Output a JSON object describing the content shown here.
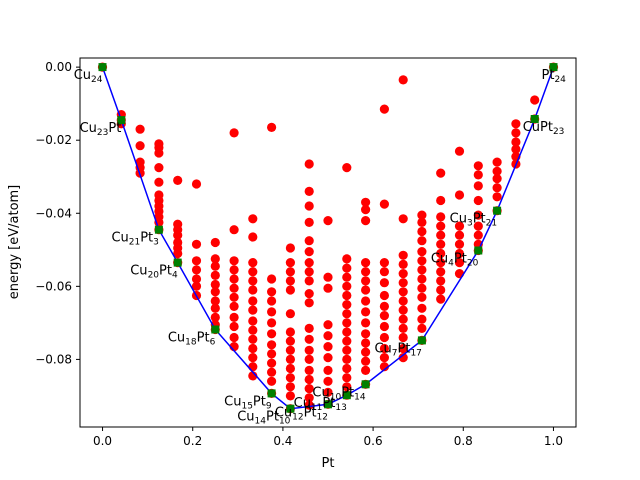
{
  "chart_data": {
    "type": "scatter",
    "title": "",
    "xlabel": "Pt",
    "ylabel": "energy [eV/atom]",
    "xlim": [
      -0.05,
      1.05
    ],
    "ylim": [
      -0.0985,
      0.0025
    ],
    "xticks": [
      0.0,
      0.2,
      0.4,
      0.6,
      0.8,
      1.0
    ],
    "xtick_labels": [
      "0.0",
      "0.2",
      "0.4",
      "0.6",
      "0.8",
      "1.0"
    ],
    "yticks": [
      0.0,
      -0.02,
      -0.04,
      -0.06,
      -0.08
    ],
    "ytick_labels": [
      "0.00",
      "−0.02",
      "−0.04",
      "−0.06",
      "−0.08"
    ],
    "grid": false,
    "colors": {
      "points": "#ff0000",
      "hull_points": "#008000",
      "hull_line": "#0000ff"
    },
    "hull": [
      [
        0.0,
        0.0
      ],
      [
        0.0417,
        -0.0145
      ],
      [
        0.125,
        -0.0445
      ],
      [
        0.1667,
        -0.0535
      ],
      [
        0.25,
        -0.0718
      ],
      [
        0.375,
        -0.0893
      ],
      [
        0.4167,
        -0.0935
      ],
      [
        0.5,
        -0.0923
      ],
      [
        0.5417,
        -0.0898
      ],
      [
        0.5833,
        -0.0868
      ],
      [
        0.7083,
        -0.0748
      ],
      [
        0.8333,
        -0.0502
      ],
      [
        0.875,
        -0.0393
      ],
      [
        0.9583,
        -0.0142
      ],
      [
        1.0,
        0.0
      ]
    ],
    "hull_points": [
      [
        0.0,
        0.0
      ],
      [
        0.0417,
        -0.0145
      ],
      [
        0.125,
        -0.0445
      ],
      [
        0.1667,
        -0.0535
      ],
      [
        0.25,
        -0.0718
      ],
      [
        0.375,
        -0.0893
      ],
      [
        0.4167,
        -0.0935
      ],
      [
        0.5,
        -0.0923
      ],
      [
        0.5417,
        -0.0898
      ],
      [
        0.5833,
        -0.0868
      ],
      [
        0.7083,
        -0.0748
      ],
      [
        0.8333,
        -0.0502
      ],
      [
        0.875,
        -0.0393
      ],
      [
        0.9583,
        -0.0142
      ],
      [
        1.0,
        0.0
      ]
    ],
    "scatter": [
      [
        0.0,
        0.0
      ],
      [
        0.0417,
        -0.013
      ],
      [
        0.0417,
        -0.0145
      ],
      [
        0.0417,
        -0.0155
      ],
      [
        0.0833,
        -0.017
      ],
      [
        0.0833,
        -0.0215
      ],
      [
        0.0833,
        -0.026
      ],
      [
        0.0833,
        -0.0275
      ],
      [
        0.0833,
        -0.029
      ],
      [
        0.125,
        -0.021
      ],
      [
        0.125,
        -0.022
      ],
      [
        0.125,
        -0.0235
      ],
      [
        0.125,
        -0.0275
      ],
      [
        0.125,
        -0.0315
      ],
      [
        0.125,
        -0.035
      ],
      [
        0.125,
        -0.0365
      ],
      [
        0.125,
        -0.038
      ],
      [
        0.125,
        -0.0395
      ],
      [
        0.125,
        -0.041
      ],
      [
        0.125,
        -0.0425
      ],
      [
        0.125,
        -0.0445
      ],
      [
        0.1667,
        -0.031
      ],
      [
        0.1667,
        -0.043
      ],
      [
        0.1667,
        -0.0445
      ],
      [
        0.1667,
        -0.046
      ],
      [
        0.1667,
        -0.048
      ],
      [
        0.1667,
        -0.0495
      ],
      [
        0.1667,
        -0.051
      ],
      [
        0.1667,
        -0.0535
      ],
      [
        0.2083,
        -0.032
      ],
      [
        0.2083,
        -0.0485
      ],
      [
        0.2083,
        -0.053
      ],
      [
        0.2083,
        -0.0555
      ],
      [
        0.2083,
        -0.058
      ],
      [
        0.2083,
        -0.06
      ],
      [
        0.2083,
        -0.0625
      ],
      [
        0.25,
        -0.048
      ],
      [
        0.25,
        -0.0525
      ],
      [
        0.25,
        -0.0545
      ],
      [
        0.25,
        -0.057
      ],
      [
        0.25,
        -0.0595
      ],
      [
        0.25,
        -0.0615
      ],
      [
        0.25,
        -0.064
      ],
      [
        0.25,
        -0.066
      ],
      [
        0.25,
        -0.0685
      ],
      [
        0.25,
        -0.0705
      ],
      [
        0.25,
        -0.0718
      ],
      [
        0.2917,
        -0.018
      ],
      [
        0.2917,
        -0.0445
      ],
      [
        0.2917,
        -0.053
      ],
      [
        0.2917,
        -0.0555
      ],
      [
        0.2917,
        -0.058
      ],
      [
        0.2917,
        -0.0605
      ],
      [
        0.2917,
        -0.063
      ],
      [
        0.2917,
        -0.0655
      ],
      [
        0.2917,
        -0.0685
      ],
      [
        0.2917,
        -0.071
      ],
      [
        0.2917,
        -0.074
      ],
      [
        0.2917,
        -0.0765
      ],
      [
        0.3333,
        -0.0415
      ],
      [
        0.3333,
        -0.0465
      ],
      [
        0.3333,
        -0.0535
      ],
      [
        0.3333,
        -0.056
      ],
      [
        0.3333,
        -0.0585
      ],
      [
        0.3333,
        -0.061
      ],
      [
        0.3333,
        -0.064
      ],
      [
        0.3333,
        -0.0665
      ],
      [
        0.3333,
        -0.0695
      ],
      [
        0.3333,
        -0.072
      ],
      [
        0.3333,
        -0.0745
      ],
      [
        0.3333,
        -0.077
      ],
      [
        0.3333,
        -0.0795
      ],
      [
        0.3333,
        -0.082
      ],
      [
        0.3333,
        -0.0845
      ],
      [
        0.375,
        -0.0165
      ],
      [
        0.375,
        -0.058
      ],
      [
        0.375,
        -0.0615
      ],
      [
        0.375,
        -0.064
      ],
      [
        0.375,
        -0.067
      ],
      [
        0.375,
        -0.07
      ],
      [
        0.375,
        -0.073
      ],
      [
        0.375,
        -0.076
      ],
      [
        0.375,
        -0.0785
      ],
      [
        0.375,
        -0.081
      ],
      [
        0.375,
        -0.0835
      ],
      [
        0.375,
        -0.086
      ],
      [
        0.375,
        -0.0893
      ],
      [
        0.4167,
        -0.0495
      ],
      [
        0.4167,
        -0.0535
      ],
      [
        0.4167,
        -0.056
      ],
      [
        0.4167,
        -0.0585
      ],
      [
        0.4167,
        -0.061
      ],
      [
        0.4167,
        -0.0675
      ],
      [
        0.4167,
        -0.0725
      ],
      [
        0.4167,
        -0.075
      ],
      [
        0.4167,
        -0.0775
      ],
      [
        0.4167,
        -0.08
      ],
      [
        0.4167,
        -0.0825
      ],
      [
        0.4167,
        -0.085
      ],
      [
        0.4167,
        -0.0875
      ],
      [
        0.4167,
        -0.09
      ],
      [
        0.4167,
        -0.0935
      ],
      [
        0.4583,
        -0.0265
      ],
      [
        0.4583,
        -0.034
      ],
      [
        0.4583,
        -0.038
      ],
      [
        0.4583,
        -0.0425
      ],
      [
        0.4583,
        -0.0475
      ],
      [
        0.4583,
        -0.0505
      ],
      [
        0.4583,
        -0.0535
      ],
      [
        0.4583,
        -0.056
      ],
      [
        0.4583,
        -0.0585
      ],
      [
        0.4583,
        -0.062
      ],
      [
        0.4583,
        -0.0645
      ],
      [
        0.4583,
        -0.0715
      ],
      [
        0.4583,
        -0.0745
      ],
      [
        0.4583,
        -0.0775
      ],
      [
        0.4583,
        -0.08
      ],
      [
        0.4583,
        -0.083
      ],
      [
        0.4583,
        -0.0855
      ],
      [
        0.4583,
        -0.088
      ],
      [
        0.4583,
        -0.0905
      ],
      [
        0.4583,
        -0.0925
      ],
      [
        0.5,
        -0.042
      ],
      [
        0.5,
        -0.0575
      ],
      [
        0.5,
        -0.0605
      ],
      [
        0.5,
        -0.0705
      ],
      [
        0.5,
        -0.0735
      ],
      [
        0.5,
        -0.0765
      ],
      [
        0.5,
        -0.0795
      ],
      [
        0.5,
        -0.083
      ],
      [
        0.5,
        -0.086
      ],
      [
        0.5,
        -0.089
      ],
      [
        0.5,
        -0.0923
      ],
      [
        0.5417,
        -0.0275
      ],
      [
        0.5417,
        -0.0525
      ],
      [
        0.5417,
        -0.055
      ],
      [
        0.5417,
        -0.0575
      ],
      [
        0.5417,
        -0.06
      ],
      [
        0.5417,
        -0.0625
      ],
      [
        0.5417,
        -0.065
      ],
      [
        0.5417,
        -0.0675
      ],
      [
        0.5417,
        -0.07
      ],
      [
        0.5417,
        -0.0725
      ],
      [
        0.5417,
        -0.075
      ],
      [
        0.5417,
        -0.0775
      ],
      [
        0.5417,
        -0.08
      ],
      [
        0.5417,
        -0.0825
      ],
      [
        0.5417,
        -0.085
      ],
      [
        0.5417,
        -0.0875
      ],
      [
        0.5417,
        -0.0898
      ],
      [
        0.5833,
        -0.037
      ],
      [
        0.5833,
        -0.039
      ],
      [
        0.5833,
        -0.042
      ],
      [
        0.5833,
        -0.0535
      ],
      [
        0.5833,
        -0.056
      ],
      [
        0.5833,
        -0.0585
      ],
      [
        0.5833,
        -0.061
      ],
      [
        0.5833,
        -0.064
      ],
      [
        0.5833,
        -0.067
      ],
      [
        0.5833,
        -0.07
      ],
      [
        0.5833,
        -0.073
      ],
      [
        0.5833,
        -0.0755
      ],
      [
        0.5833,
        -0.078
      ],
      [
        0.5833,
        -0.0805
      ],
      [
        0.5833,
        -0.083
      ],
      [
        0.5833,
        -0.0868
      ],
      [
        0.625,
        -0.0115
      ],
      [
        0.625,
        -0.0375
      ],
      [
        0.625,
        -0.0535
      ],
      [
        0.625,
        -0.056
      ],
      [
        0.625,
        -0.059
      ],
      [
        0.625,
        -0.0625
      ],
      [
        0.625,
        -0.0655
      ],
      [
        0.625,
        -0.068
      ],
      [
        0.625,
        -0.071
      ],
      [
        0.625,
        -0.074
      ],
      [
        0.625,
        -0.077
      ],
      [
        0.625,
        -0.0795
      ],
      [
        0.625,
        -0.082
      ],
      [
        0.6667,
        -0.0035
      ],
      [
        0.6667,
        -0.0415
      ],
      [
        0.6667,
        -0.0515
      ],
      [
        0.6667,
        -0.054
      ],
      [
        0.6667,
        -0.0565
      ],
      [
        0.6667,
        -0.059
      ],
      [
        0.6667,
        -0.0615
      ],
      [
        0.6667,
        -0.064
      ],
      [
        0.6667,
        -0.0665
      ],
      [
        0.6667,
        -0.069
      ],
      [
        0.6667,
        -0.0715
      ],
      [
        0.6667,
        -0.074
      ],
      [
        0.6667,
        -0.077
      ],
      [
        0.6667,
        -0.0795
      ],
      [
        0.7083,
        -0.0405
      ],
      [
        0.7083,
        -0.0425
      ],
      [
        0.7083,
        -0.045
      ],
      [
        0.7083,
        -0.0475
      ],
      [
        0.7083,
        -0.0505
      ],
      [
        0.7083,
        -0.053
      ],
      [
        0.7083,
        -0.0555
      ],
      [
        0.7083,
        -0.058
      ],
      [
        0.7083,
        -0.0605
      ],
      [
        0.7083,
        -0.063
      ],
      [
        0.7083,
        -0.066
      ],
      [
        0.7083,
        -0.069
      ],
      [
        0.7083,
        -0.0715
      ],
      [
        0.7083,
        -0.0748
      ],
      [
        0.75,
        -0.029
      ],
      [
        0.75,
        -0.0365
      ],
      [
        0.75,
        -0.041
      ],
      [
        0.75,
        -0.0435
      ],
      [
        0.75,
        -0.046
      ],
      [
        0.75,
        -0.0485
      ],
      [
        0.75,
        -0.051
      ],
      [
        0.75,
        -0.0535
      ],
      [
        0.75,
        -0.056
      ],
      [
        0.75,
        -0.0585
      ],
      [
        0.75,
        -0.061
      ],
      [
        0.75,
        -0.0635
      ],
      [
        0.7917,
        -0.023
      ],
      [
        0.7917,
        -0.035
      ],
      [
        0.7917,
        -0.0435
      ],
      [
        0.7917,
        -0.046
      ],
      [
        0.7917,
        -0.0485
      ],
      [
        0.7917,
        -0.051
      ],
      [
        0.7917,
        -0.0535
      ],
      [
        0.7917,
        -0.0565
      ],
      [
        0.8333,
        -0.027
      ],
      [
        0.8333,
        -0.0295
      ],
      [
        0.8333,
        -0.0325
      ],
      [
        0.8333,
        -0.0365
      ],
      [
        0.8333,
        -0.0405
      ],
      [
        0.8333,
        -0.0435
      ],
      [
        0.8333,
        -0.046
      ],
      [
        0.8333,
        -0.0485
      ],
      [
        0.8333,
        -0.0502
      ],
      [
        0.875,
        -0.026
      ],
      [
        0.875,
        -0.0285
      ],
      [
        0.875,
        -0.0305
      ],
      [
        0.875,
        -0.033
      ],
      [
        0.875,
        -0.0355
      ],
      [
        0.875,
        -0.0393
      ],
      [
        0.9167,
        -0.0155
      ],
      [
        0.9167,
        -0.018
      ],
      [
        0.9167,
        -0.0205
      ],
      [
        0.9167,
        -0.0225
      ],
      [
        0.9167,
        -0.0245
      ],
      [
        0.9167,
        -0.0265
      ],
      [
        0.9583,
        -0.009
      ],
      [
        0.9583,
        -0.0142
      ],
      [
        1.0,
        0.0
      ]
    ],
    "annotations": [
      {
        "base": "Cu",
        "sub1": "24",
        "mid": "",
        "sub2": "",
        "x": 0.0,
        "y": 0.0
      },
      {
        "base": "Cu",
        "sub1": "23",
        "mid": "Pt",
        "sub2": "",
        "x": 0.0417,
        "y": -0.0145
      },
      {
        "base": "Cu",
        "sub1": "21",
        "mid": "Pt",
        "sub2": "3",
        "x": 0.125,
        "y": -0.0445
      },
      {
        "base": "Cu",
        "sub1": "20",
        "mid": "Pt",
        "sub2": "4",
        "x": 0.1667,
        "y": -0.0535
      },
      {
        "base": "Cu",
        "sub1": "18",
        "mid": "Pt",
        "sub2": "6",
        "x": 0.25,
        "y": -0.0718
      },
      {
        "base": "Cu",
        "sub1": "15",
        "mid": "Pt",
        "sub2": "9",
        "x": 0.375,
        "y": -0.0893
      },
      {
        "base": "Cu",
        "sub1": "14",
        "mid": "Pt",
        "sub2": "10",
        "x": 0.4167,
        "y": -0.0935
      },
      {
        "base": "Cu",
        "sub1": "12",
        "mid": "Pt",
        "sub2": "12",
        "x": 0.5,
        "y": -0.0923
      },
      {
        "base": "Cu",
        "sub1": "11",
        "mid": "Pt",
        "sub2": "13",
        "x": 0.5417,
        "y": -0.0898
      },
      {
        "base": "Cu",
        "sub1": "10",
        "mid": "Pt",
        "sub2": "14",
        "x": 0.5833,
        "y": -0.0868
      },
      {
        "base": "Cu",
        "sub1": "7",
        "mid": "Pt",
        "sub2": "17",
        "x": 0.7083,
        "y": -0.0748
      },
      {
        "base": "Cu",
        "sub1": "4",
        "mid": "Pt",
        "sub2": "20",
        "x": 0.8333,
        "y": -0.0502
      },
      {
        "base": "Cu",
        "sub1": "3",
        "mid": "Pt",
        "sub2": "21",
        "x": 0.875,
        "y": -0.0393
      },
      {
        "base": "CuPt",
        "sub1": "23",
        "mid": "",
        "sub2": "",
        "x": 0.9583,
        "y": -0.0142
      },
      {
        "base": "Pt",
        "sub1": "24",
        "mid": "",
        "sub2": "",
        "x": 1.0,
        "y": 0.0
      }
    ]
  }
}
